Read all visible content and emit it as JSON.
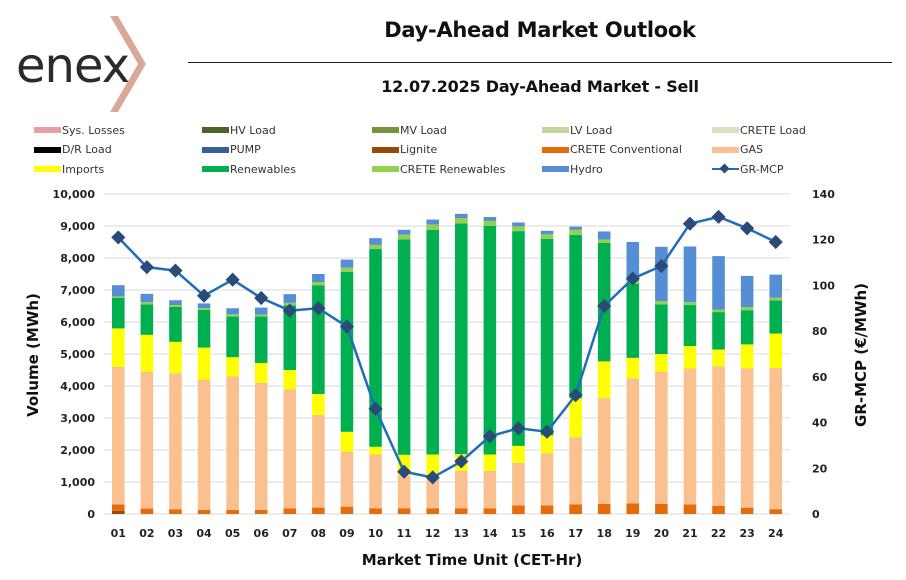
{
  "header": {
    "logo_text": "enex",
    "title": "Day-Ahead Market Outlook",
    "subtitle": "12.07.2025  Day-Ahead Market - Sell"
  },
  "legend": [
    {
      "label": "Sys. Losses",
      "color": "#e6a0a0",
      "type": "bar"
    },
    {
      "label": "HV Load",
      "color": "#4f6228",
      "type": "bar"
    },
    {
      "label": "MV Load",
      "color": "#77933c",
      "type": "bar"
    },
    {
      "label": "LV Load",
      "color": "#c3d69b",
      "type": "bar"
    },
    {
      "label": "CRETE Load",
      "color": "#d7e4bd",
      "type": "bar"
    },
    {
      "label": "D/R Load",
      "color": "#000000",
      "type": "bar"
    },
    {
      "label": "PUMP",
      "color": "#376092",
      "type": "bar"
    },
    {
      "label": "Lignite",
      "color": "#984807",
      "type": "bar"
    },
    {
      "label": "CRETE Conventional",
      "color": "#e46c0a",
      "type": "bar"
    },
    {
      "label": "GAS",
      "color": "#fac090",
      "type": "bar"
    },
    {
      "label": "Imports",
      "color": "#ffff00",
      "type": "bar"
    },
    {
      "label": "Renewables",
      "color": "#00b050",
      "type": "bar"
    },
    {
      "label": "CRETE Renewables",
      "color": "#92d050",
      "type": "bar"
    },
    {
      "label": "Hydro",
      "color": "#558ed5",
      "type": "bar"
    },
    {
      "label": "GR-MCP",
      "color": "#1f6fb8",
      "type": "line"
    }
  ],
  "chart_data": {
    "type": "bar",
    "stacked": true,
    "title": "12.07.2025  Day-Ahead Market - Sell",
    "xlabel": "Market Time Unit (CET-Hr)",
    "ylabel": "Volume (MWh)",
    "y2label": "GR-MCP (€/MWh)",
    "ylim": [
      0,
      10000
    ],
    "y2lim": [
      0,
      140
    ],
    "yticks": [
      "0",
      "1,000",
      "2,000",
      "3,000",
      "4,000",
      "5,000",
      "6,000",
      "7,000",
      "8,000",
      "9,000",
      "10,000"
    ],
    "y2ticks": [
      "0",
      "20",
      "40",
      "60",
      "80",
      "100",
      "120",
      "140"
    ],
    "grid": true,
    "legend_position": "top",
    "categories": [
      "01",
      "02",
      "03",
      "04",
      "05",
      "06",
      "07",
      "08",
      "09",
      "10",
      "11",
      "12",
      "13",
      "14",
      "15",
      "16",
      "17",
      "18",
      "19",
      "20",
      "21",
      "22",
      "23",
      "24"
    ],
    "series": [
      {
        "name": "Lignite",
        "color": "#984807",
        "values": [
          100,
          0,
          0,
          0,
          0,
          0,
          0,
          0,
          0,
          0,
          0,
          0,
          0,
          0,
          0,
          0,
          0,
          0,
          0,
          0,
          0,
          0,
          0,
          0
        ]
      },
      {
        "name": "CRETE Conventional",
        "color": "#e46c0a",
        "values": [
          200,
          170,
          150,
          130,
          130,
          130,
          180,
          200,
          230,
          180,
          180,
          180,
          180,
          180,
          270,
          270,
          300,
          320,
          330,
          320,
          300,
          250,
          200,
          150
        ]
      },
      {
        "name": "GAS",
        "color": "#fac090",
        "values": [
          4300,
          4280,
          4250,
          4070,
          4170,
          3970,
          3720,
          2900,
          1720,
          1680,
          1020,
          1020,
          1170,
          1170,
          1330,
          1630,
          2100,
          3300,
          3900,
          4130,
          4250,
          4370,
          4350,
          4410
        ]
      },
      {
        "name": "Imports",
        "color": "#ffff00",
        "values": [
          1200,
          1150,
          980,
          1000,
          600,
          620,
          600,
          650,
          620,
          240,
          650,
          660,
          520,
          510,
          530,
          560,
          1220,
          1150,
          650,
          550,
          700,
          520,
          750,
          1080
        ]
      },
      {
        "name": "Renewables",
        "color": "#00b050",
        "values": [
          950,
          950,
          1090,
          1180,
          1270,
          1450,
          2020,
          3400,
          5000,
          6180,
          6730,
          7020,
          7210,
          7140,
          6710,
          6140,
          5100,
          3700,
          2320,
          1550,
          1280,
          1170,
          1070,
          1030
        ]
      },
      {
        "name": "CRETE Renewables",
        "color": "#92d050",
        "values": [
          50,
          70,
          60,
          50,
          70,
          60,
          80,
          100,
          130,
          130,
          150,
          170,
          170,
          160,
          150,
          140,
          160,
          110,
          80,
          100,
          90,
          80,
          90,
          90
        ]
      },
      {
        "name": "Hydro",
        "color": "#558ed5",
        "values": [
          350,
          260,
          150,
          150,
          190,
          220,
          270,
          250,
          250,
          210,
          150,
          150,
          130,
          120,
          120,
          110,
          100,
          250,
          1220,
          1700,
          1740,
          1670,
          980,
          720
        ]
      }
    ],
    "line_series": {
      "name": "GR-MCP",
      "axis": "right",
      "color": "#1f6fb8",
      "marker_color": "#2a4a78",
      "values": [
        121,
        108,
        106.5,
        95.5,
        102.5,
        94.5,
        89,
        90,
        82,
        46,
        18.5,
        16,
        23,
        34,
        37.5,
        36,
        52,
        91,
        103,
        108.5,
        127,
        130,
        125,
        119
      ]
    }
  }
}
